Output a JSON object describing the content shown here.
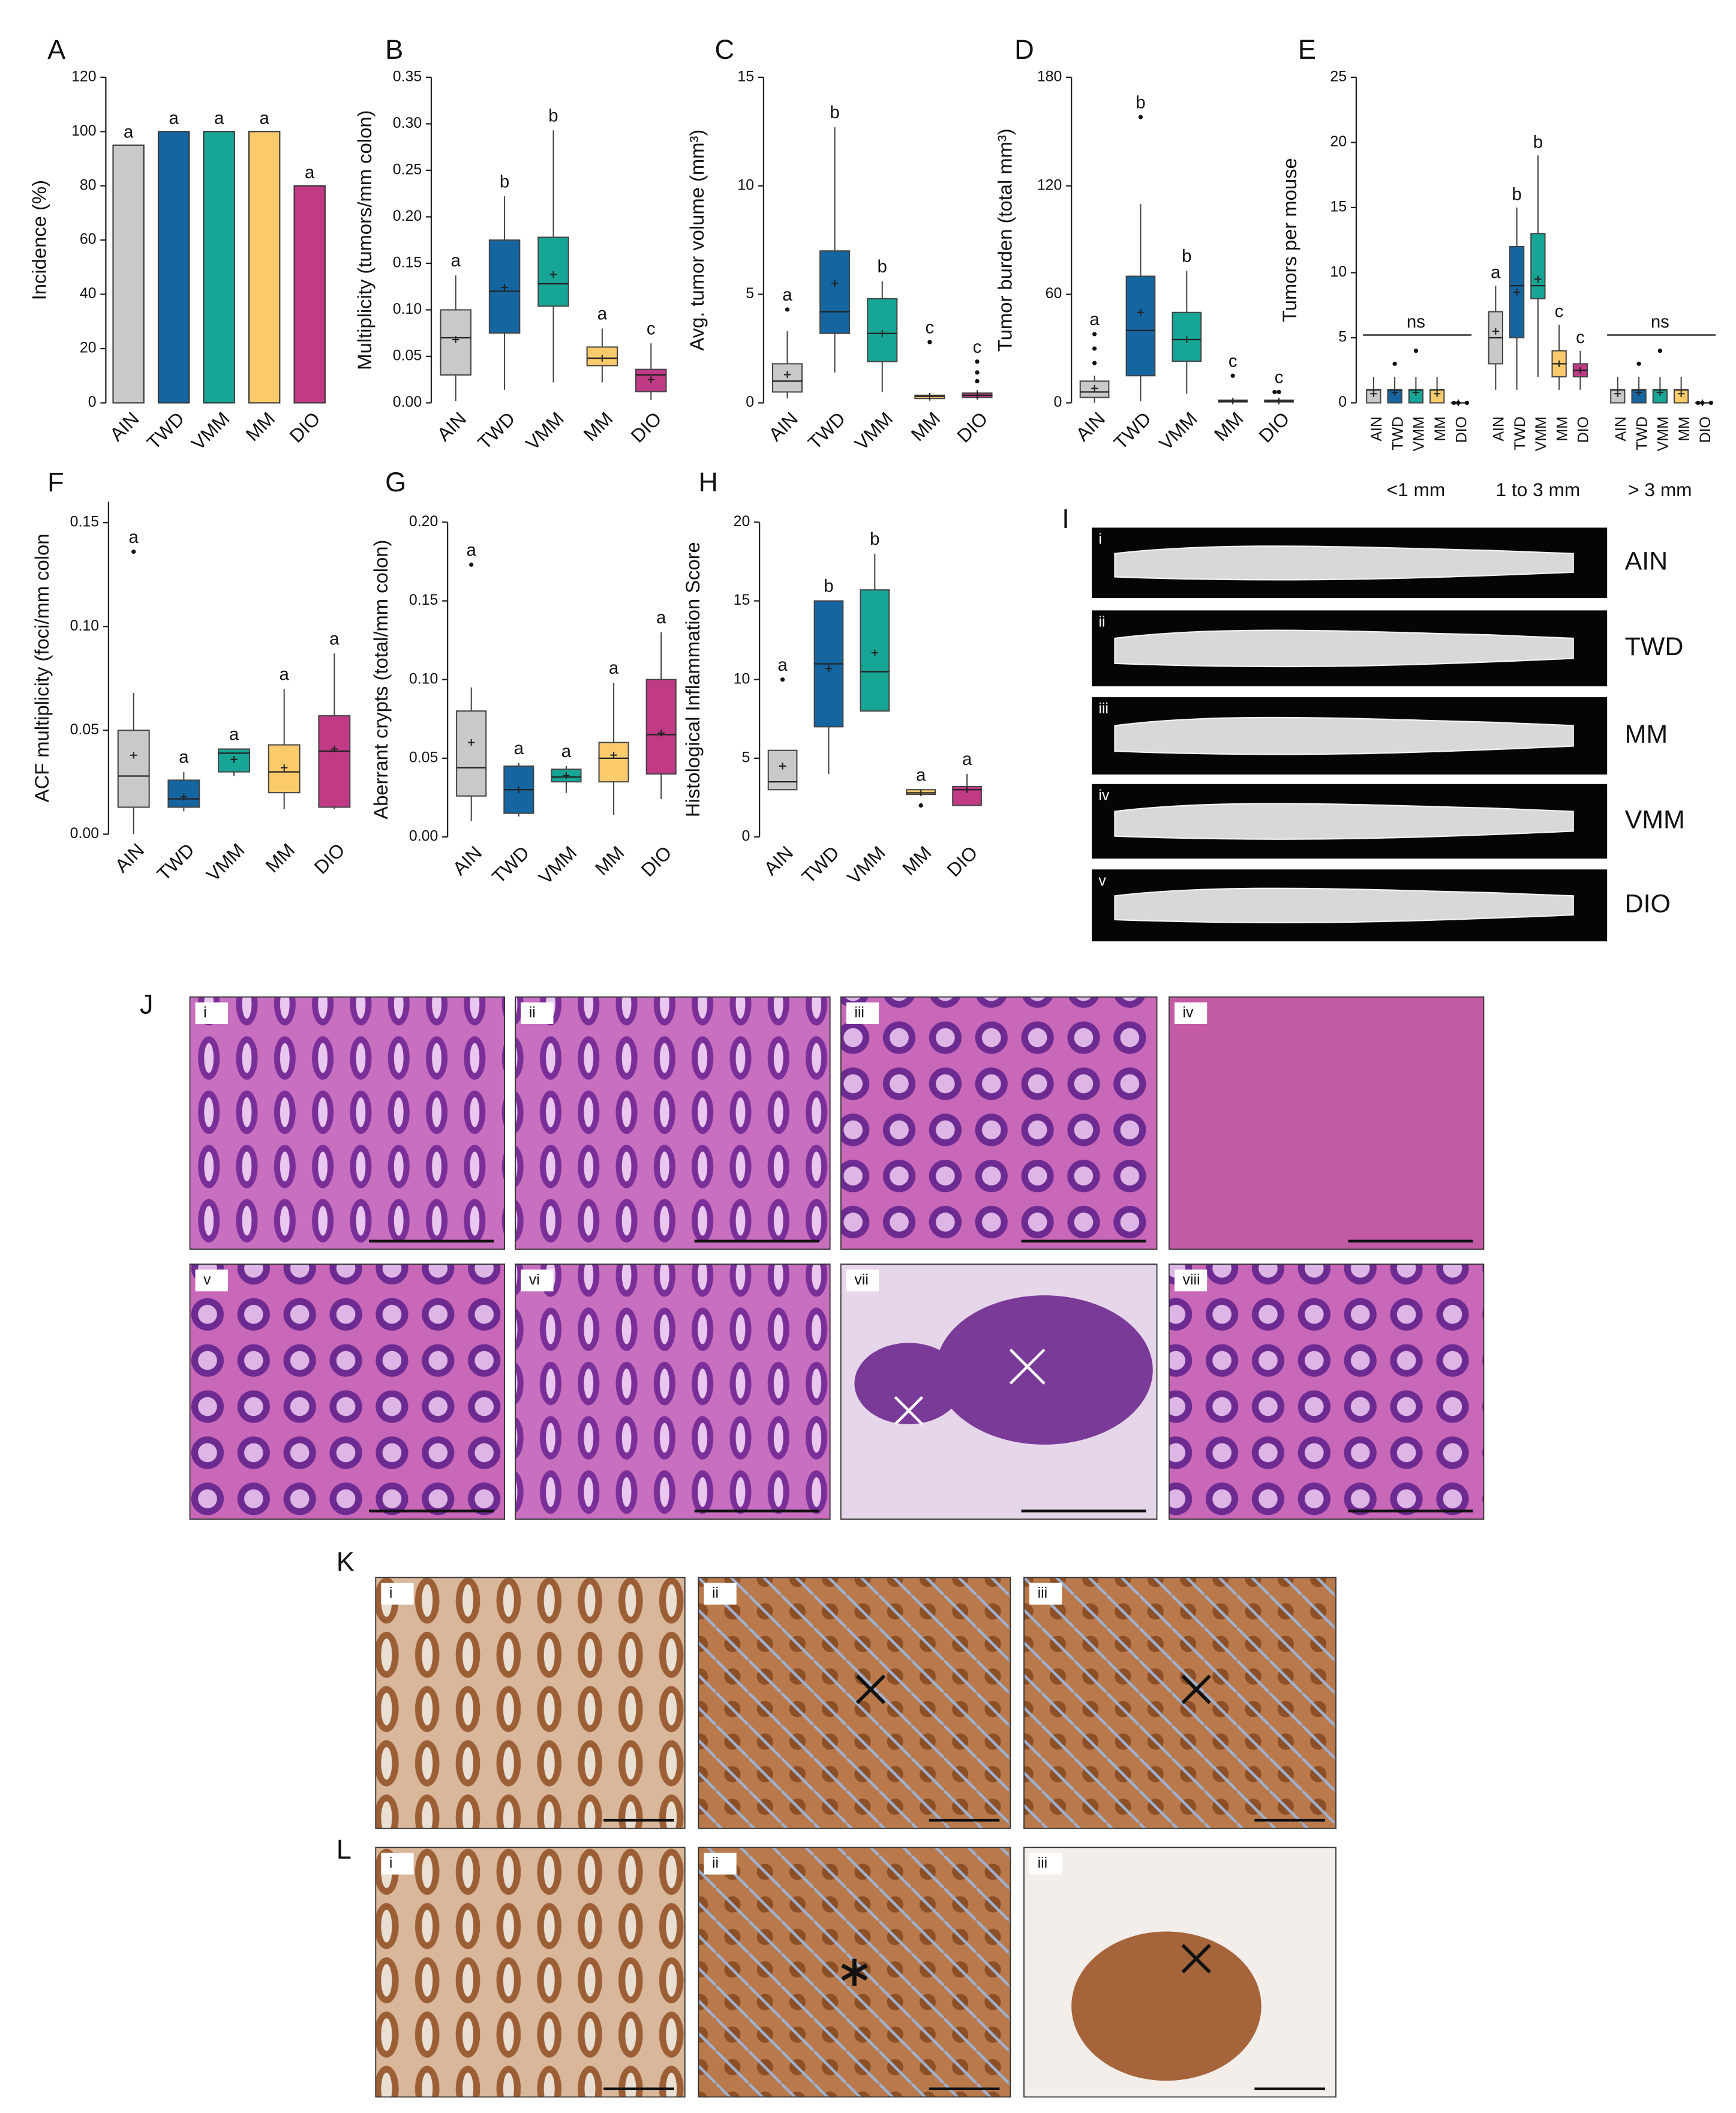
{
  "chart_data": [
    {
      "type": "bar",
      "panel": "A",
      "ylabel": "Incidence (%)",
      "categories": [
        "AIN",
        "TWD",
        "VMM",
        "MM",
        "DIO"
      ],
      "colors": [
        "#c9c9c9",
        "#1565a0",
        "#17a596",
        "#fbcb6b",
        "#c13a86"
      ],
      "values": [
        95,
        100,
        100,
        100,
        80
      ],
      "letters": [
        "a",
        "a",
        "a",
        "a",
        "a"
      ],
      "ylim": [
        0,
        120
      ],
      "yticks": [
        0,
        20,
        40,
        60,
        80,
        100,
        120
      ]
    },
    {
      "type": "box",
      "panel": "B",
      "ylabel": "Multiplicity (tumors/mm colon)",
      "categories": [
        "AIN",
        "TWD",
        "VMM",
        "MM",
        "DIO"
      ],
      "colors": [
        "#c9c9c9",
        "#1565a0",
        "#17a596",
        "#fbcb6b",
        "#c13a86"
      ],
      "boxes": [
        {
          "min": 0.002,
          "q1": 0.03,
          "median": 0.07,
          "q3": 0.1,
          "max": 0.137,
          "mean": 0.068
        },
        {
          "min": 0.014,
          "q1": 0.075,
          "median": 0.12,
          "q3": 0.175,
          "max": 0.222,
          "mean": 0.124
        },
        {
          "min": 0.022,
          "q1": 0.104,
          "median": 0.128,
          "q3": 0.178,
          "max": 0.293,
          "mean": 0.138
        },
        {
          "min": 0.022,
          "q1": 0.04,
          "median": 0.048,
          "q3": 0.06,
          "max": 0.08,
          "mean": 0.048
        },
        {
          "min": 0.003,
          "q1": 0.012,
          "median": 0.03,
          "q3": 0.036,
          "max": 0.064,
          "mean": 0.025
        }
      ],
      "letters": [
        "a",
        "b",
        "b",
        "a",
        "c"
      ],
      "ylim": [
        0,
        0.35
      ],
      "yticks": [
        {
          "value": 0,
          "label": "0.00"
        },
        {
          "value": 0.05,
          "label": "0.05"
        },
        {
          "value": 0.1,
          "label": "0.10"
        },
        {
          "value": 0.15,
          "label": "0.15"
        },
        {
          "value": 0.2,
          "label": "0.20"
        },
        {
          "value": 0.25,
          "label": "0.25"
        },
        {
          "value": 0.3,
          "label": "0.30"
        },
        {
          "value": 0.35,
          "label": "0.35"
        }
      ]
    },
    {
      "type": "box",
      "panel": "C",
      "ylabel": "Avg. tumor volume (mm³)",
      "categories": [
        "AIN",
        "TWD",
        "VMM",
        "MM",
        "DIO"
      ],
      "colors": [
        "#c9c9c9",
        "#1565a0",
        "#17a596",
        "#fbcb6b",
        "#c13a86"
      ],
      "boxes": [
        {
          "min": 0.2,
          "q1": 0.5,
          "median": 1,
          "q3": 1.8,
          "max": 3.3,
          "mean": 1.3,
          "outliers": [
            4.3
          ]
        },
        {
          "min": 1.4,
          "q1": 3.2,
          "median": 4.2,
          "q3": 7,
          "max": 12.7,
          "mean": 5.5
        },
        {
          "min": 0.5,
          "q1": 1.9,
          "median": 3.2,
          "q3": 4.8,
          "max": 5.6,
          "mean": 3.2
        },
        {
          "min": 0.1,
          "q1": 0.2,
          "median": 0.3,
          "q3": 0.35,
          "max": 0.45,
          "mean": 0.3,
          "outliers": [
            2.8
          ]
        },
        {
          "min": 0.15,
          "q1": 0.25,
          "median": 0.35,
          "q3": 0.45,
          "max": 0.6,
          "mean": 0.35,
          "outliers": [
            1,
            1.4,
            1.9
          ]
        }
      ],
      "letters": [
        "a",
        "b",
        "b",
        "c",
        "c"
      ],
      "ylim": [
        0,
        15
      ],
      "yticks": [
        0,
        5,
        10,
        15
      ]
    },
    {
      "type": "box",
      "panel": "D",
      "ylabel": "Tumor burden (total mm³)",
      "categories": [
        "AIN",
        "TWD",
        "VMM",
        "MM",
        "DIO"
      ],
      "colors": [
        "#c9c9c9",
        "#1565a0",
        "#17a596",
        "#fbcb6b",
        "#c13a86"
      ],
      "boxes": [
        {
          "min": 0,
          "q1": 3,
          "median": 6,
          "q3": 12,
          "max": 15,
          "mean": 8,
          "outliers": [
            22,
            30,
            38
          ]
        },
        {
          "min": 1,
          "q1": 15,
          "median": 40,
          "q3": 70,
          "max": 110,
          "mean": 50,
          "outliers": [
            158
          ]
        },
        {
          "min": 5,
          "q1": 23,
          "median": 35,
          "q3": 50,
          "max": 73,
          "mean": 35
        },
        {
          "min": 0,
          "q1": 0.5,
          "median": 1,
          "q3": 1.5,
          "max": 2,
          "mean": 1,
          "outliers": [
            15
          ]
        },
        {
          "min": 0,
          "q1": 0.5,
          "median": 1,
          "q3": 1.5,
          "max": 2,
          "mean": 1,
          "outliers": [
            6,
            6
          ]
        }
      ],
      "letters": [
        "a",
        "b",
        "b",
        "c",
        "c"
      ],
      "ylim": [
        0,
        180
      ],
      "yticks": [
        0,
        60,
        120,
        180
      ]
    },
    {
      "type": "grouped_box",
      "panel": "E",
      "ylabel": "Tumors per mouse",
      "categories": [
        "AIN",
        "TWD",
        "VMM",
        "MM",
        "DIO"
      ],
      "colors": [
        "#c9c9c9",
        "#1565a0",
        "#17a596",
        "#fbcb6b",
        "#c13a86"
      ],
      "groups": [
        {
          "name": "<1 mm",
          "annotation": "ns",
          "boxes": [
            {
              "min": 0,
              "q1": 0,
              "median": 1,
              "q3": 1,
              "max": 2,
              "mean": 0.7
            },
            {
              "min": 0,
              "q1": 0,
              "median": 1,
              "q3": 1,
              "max": 2,
              "mean": 0.8,
              "outliers": [
                3
              ]
            },
            {
              "min": 0,
              "q1": 0,
              "median": 1,
              "q3": 1,
              "max": 2,
              "mean": 0.8,
              "outliers": [
                4
              ]
            },
            {
              "min": 0,
              "q1": 0,
              "median": 1,
              "q3": 1,
              "max": 2,
              "mean": 0.7
            },
            {
              "min": 0,
              "q1": 0,
              "median": 0,
              "q3": 0,
              "max": 0,
              "mean": 0,
              "outliers": [
                0,
                0,
                0
              ]
            }
          ]
        },
        {
          "name": "1 to 3 mm",
          "letters": [
            "a",
            "b",
            "b",
            "c",
            "c"
          ],
          "boxes": [
            {
              "min": 1,
              "q1": 3,
              "median": 5,
              "q3": 7,
              "max": 9,
              "mean": 5.5
            },
            {
              "min": 1,
              "q1": 5,
              "median": 9,
              "q3": 12,
              "max": 15,
              "mean": 8.5
            },
            {
              "min": 2,
              "q1": 8,
              "median": 9,
              "q3": 13,
              "max": 19,
              "mean": 9.5
            },
            {
              "min": 1,
              "q1": 2,
              "median": 3,
              "q3": 4,
              "max": 6,
              "mean": 3
            },
            {
              "min": 1,
              "q1": 2,
              "median": 2.5,
              "q3": 3,
              "max": 4,
              "mean": 2.5
            }
          ]
        },
        {
          "name": "> 3 mm",
          "annotation": "ns",
          "boxes": [
            {
              "min": 0,
              "q1": 0,
              "median": 1,
              "q3": 1,
              "max": 2,
              "mean": 0.7
            },
            {
              "min": 0,
              "q1": 0,
              "median": 1,
              "q3": 1,
              "max": 2,
              "mean": 0.8,
              "outliers": [
                3
              ]
            },
            {
              "min": 0,
              "q1": 0,
              "median": 1,
              "q3": 1,
              "max": 2,
              "mean": 0.8,
              "outliers": [
                4
              ]
            },
            {
              "min": 0,
              "q1": 0,
              "median": 1,
              "q3": 1,
              "max": 2,
              "mean": 0.7
            },
            {
              "min": 0,
              "q1": 0,
              "median": 0,
              "q3": 0,
              "max": 0,
              "mean": 0,
              "outliers": [
                0,
                0,
                0
              ]
            }
          ]
        }
      ],
      "ylim": [
        0,
        25
      ],
      "yticks": [
        0,
        5,
        10,
        15,
        20,
        25
      ]
    },
    {
      "type": "box",
      "panel": "F",
      "ylabel": "ACF multiplicity (foci/mm colon",
      "categories": [
        "AIN",
        "TWD",
        "VMM",
        "MM",
        "DIO"
      ],
      "colors": [
        "#c9c9c9",
        "#1565a0",
        "#17a596",
        "#fbcb6b",
        "#c13a86"
      ],
      "boxes": [
        {
          "min": 0,
          "q1": 0.013,
          "median": 0.028,
          "q3": 0.05,
          "max": 0.068,
          "mean": 0.038,
          "outliers": [
            0.136
          ]
        },
        {
          "min": 0.011,
          "q1": 0.013,
          "median": 0.017,
          "q3": 0.026,
          "max": 0.03,
          "mean": 0.018
        },
        {
          "min": 0.028,
          "q1": 0.03,
          "median": 0.039,
          "q3": 0.041,
          "max": 0.041,
          "mean": 0.036
        },
        {
          "min": 0.012,
          "q1": 0.02,
          "median": 0.03,
          "q3": 0.043,
          "max": 0.07,
          "mean": 0.032
        },
        {
          "min": 0.012,
          "q1": 0.013,
          "median": 0.04,
          "q3": 0.057,
          "max": 0.087,
          "mean": 0.041
        }
      ],
      "letters": [
        "a",
        "a",
        "a",
        "a",
        "a"
      ],
      "ylim": [
        0,
        0.16
      ],
      "yticks": [
        {
          "value": 0,
          "label": "0.00"
        },
        {
          "value": 0.05,
          "label": "0.05"
        },
        {
          "value": 0.1,
          "label": "0.10"
        },
        {
          "value": 0.15,
          "label": "0.15"
        }
      ]
    },
    {
      "type": "box",
      "panel": "G",
      "ylabel": "Aberrant crypts (total/mm colon)",
      "categories": [
        "AIN",
        "TWD",
        "VMM",
        "MM",
        "DIO"
      ],
      "colors": [
        "#c9c9c9",
        "#1565a0",
        "#17a596",
        "#fbcb6b",
        "#c13a86"
      ],
      "boxes": [
        {
          "min": 0.01,
          "q1": 0.026,
          "median": 0.044,
          "q3": 0.08,
          "max": 0.095,
          "mean": 0.06,
          "outliers": [
            0.173
          ]
        },
        {
          "min": 0.013,
          "q1": 0.015,
          "median": 0.03,
          "q3": 0.045,
          "max": 0.047,
          "mean": 0.03
        },
        {
          "min": 0.028,
          "q1": 0.035,
          "median": 0.038,
          "q3": 0.043,
          "max": 0.045,
          "mean": 0.039
        },
        {
          "min": 0.014,
          "q1": 0.035,
          "median": 0.05,
          "q3": 0.06,
          "max": 0.098,
          "mean": 0.052
        },
        {
          "min": 0.024,
          "q1": 0.04,
          "median": 0.065,
          "q3": 0.1,
          "max": 0.13,
          "mean": 0.066
        }
      ],
      "letters": [
        "a",
        "a",
        "a",
        "a",
        "a"
      ],
      "ylim": [
        0,
        0.2
      ],
      "yticks": [
        {
          "value": 0,
          "label": "0.00"
        },
        {
          "value": 0.05,
          "label": "0.05"
        },
        {
          "value": 0.1,
          "label": "0.10"
        },
        {
          "value": 0.15,
          "label": "0.15"
        },
        {
          "value": 0.2,
          "label": "0.20"
        }
      ]
    },
    {
      "type": "box",
      "panel": "H",
      "ylabel": "Histological Inflammation Score",
      "categories": [
        "AIN",
        "TWD",
        "VMM",
        "MM",
        "DIO"
      ],
      "colors": [
        "#c9c9c9",
        "#1565a0",
        "#17a596",
        "#fbcb6b",
        "#c13a86"
      ],
      "boxes": [
        {
          "min": 3,
          "q1": 3,
          "median": 3.5,
          "q3": 5.5,
          "max": 5.5,
          "mean": 4.5,
          "outliers": [
            10
          ]
        },
        {
          "min": 4,
          "q1": 7,
          "median": 11,
          "q3": 15,
          "max": 15,
          "mean": 10.7
        },
        {
          "min": 8,
          "q1": 8,
          "median": 10.5,
          "q3": 15.7,
          "max": 18,
          "mean": 11.7
        },
        {
          "min": 2.7,
          "q1": 2.7,
          "median": 2.8,
          "q3": 3,
          "max": 3,
          "mean": 2.8,
          "outliers": [
            2
          ]
        },
        {
          "min": 2,
          "q1": 2,
          "median": 3,
          "q3": 3.2,
          "max": 4,
          "mean": 3
        }
      ],
      "letters": [
        "a",
        "b",
        "b",
        "a",
        "a"
      ],
      "ylim": [
        0,
        20
      ],
      "yticks": [
        0,
        5,
        10,
        15,
        20
      ]
    }
  ],
  "images": {
    "I": {
      "letter": "I",
      "rows": [
        {
          "numeral": "i",
          "label": "AIN"
        },
        {
          "numeral": "ii",
          "label": "TWD"
        },
        {
          "numeral": "iii",
          "label": "MM"
        },
        {
          "numeral": "iv",
          "label": "VMM"
        },
        {
          "numeral": "v",
          "label": "DIO"
        }
      ]
    },
    "J": {
      "letter": "J",
      "tiles": [
        "i",
        "ii",
        "iii",
        "iv",
        "v",
        "vi",
        "vii",
        "viii"
      ]
    },
    "K": {
      "letter": "K",
      "tiles": [
        "i",
        "ii",
        "iii"
      ]
    },
    "L": {
      "letter": "L",
      "tiles": [
        "i",
        "ii",
        "iii"
      ]
    }
  }
}
